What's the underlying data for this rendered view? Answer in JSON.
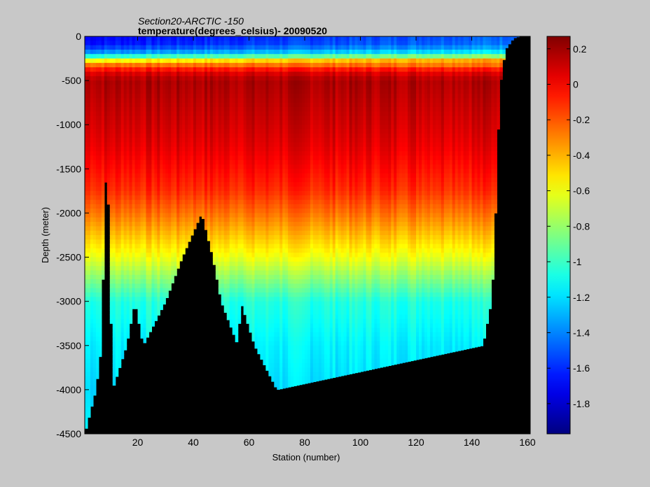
{
  "chart_data": {
    "type": "heatmap",
    "title_line1": "Section20-ARCTIC -150",
    "title_line2": "temperature(degrees_celsius)- 20090520",
    "xlabel": "Station (number)",
    "ylabel": "Depth (meter)",
    "xlim": [
      1,
      161
    ],
    "ylim": [
      -4500,
      0
    ],
    "x_ticks": [
      "20",
      "40",
      "60",
      "80",
      "100",
      "120",
      "140",
      "160"
    ],
    "y_ticks": [
      "0",
      "-500",
      "-1000",
      "-1500",
      "-2000",
      "-2500",
      "-3000",
      "-3500",
      "-4000",
      "-4500"
    ],
    "colorbar": {
      "range": [
        -1.97,
        0.27
      ],
      "ticks": [
        "0.2",
        "0",
        "-0.2",
        "-0.4",
        "-0.6",
        "-0.8",
        "-1",
        "-1.2",
        "-1.4",
        "-1.6",
        "-1.8"
      ],
      "colormap": "jet"
    },
    "depth_layers": [
      {
        "depth": 0,
        "T": -1.7
      },
      {
        "depth": 100,
        "T": -1.65
      },
      {
        "depth": 200,
        "T": -1.3
      },
      {
        "depth": 250,
        "T": -0.8
      },
      {
        "depth": 300,
        "T": -0.35
      },
      {
        "depth": 400,
        "T": 0.05
      },
      {
        "depth": 500,
        "T": 0.18
      },
      {
        "depth": 750,
        "T": 0.14
      },
      {
        "depth": 1000,
        "T": 0.1
      },
      {
        "depth": 1250,
        "T": 0.05
      },
      {
        "depth": 1500,
        "T": -0.02
      },
      {
        "depth": 1750,
        "T": -0.1
      },
      {
        "depth": 2000,
        "T": -0.25
      },
      {
        "depth": 2500,
        "T": -0.6
      },
      {
        "depth": 3000,
        "T": -1.05
      },
      {
        "depth": 3500,
        "T": -1.15
      },
      {
        "depth": 4000,
        "T": -1.2
      },
      {
        "depth": 4500,
        "T": -1.15
      }
    ],
    "bottom_depth_profile": [
      {
        "station": 1,
        "depth": 4500
      },
      {
        "station": 5,
        "depth": 4000
      },
      {
        "station": 7,
        "depth": 3500
      },
      {
        "station": 8,
        "depth": 2000
      },
      {
        "station": 9,
        "depth": 1300
      },
      {
        "station": 10,
        "depth": 2500
      },
      {
        "station": 11,
        "depth": 4000
      },
      {
        "station": 16,
        "depth": 3500
      },
      {
        "station": 19,
        "depth": 3000
      },
      {
        "station": 22,
        "depth": 3500
      },
      {
        "station": 30,
        "depth": 3000
      },
      {
        "station": 36,
        "depth": 2500
      },
      {
        "station": 43,
        "depth": 2000
      },
      {
        "station": 47,
        "depth": 2500
      },
      {
        "station": 50,
        "depth": 3000
      },
      {
        "station": 56,
        "depth": 3500
      },
      {
        "station": 57,
        "depth": 3000
      },
      {
        "station": 62,
        "depth": 3500
      },
      {
        "station": 70,
        "depth": 4000
      },
      {
        "station": 144,
        "depth": 3500
      },
      {
        "station": 147,
        "depth": 3000
      },
      {
        "station": 148,
        "depth": 2500
      },
      {
        "station": 149,
        "depth": 1500
      },
      {
        "station": 150,
        "depth": 600
      },
      {
        "station": 152,
        "depth": 150
      },
      {
        "station": 155,
        "depth": 20
      },
      {
        "station": 157,
        "depth": 0
      },
      {
        "station": 161,
        "depth": 0
      }
    ]
  }
}
